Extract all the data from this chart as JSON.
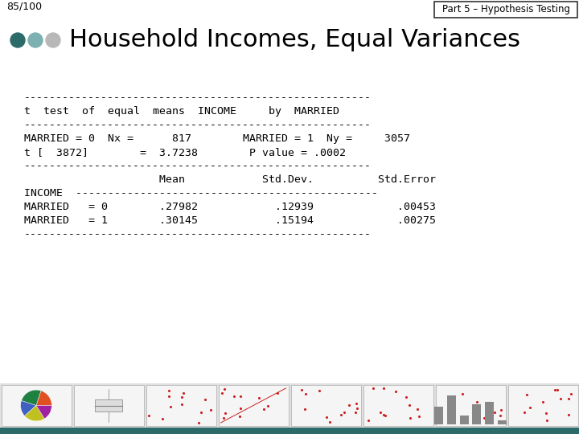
{
  "page_number": "85/100",
  "tab_label": "Part 5 – Hypothesis Testing",
  "title": "Household Incomes, Equal Variances",
  "dot_colors": [
    "#2d6b6b",
    "#7db0b0",
    "#b8b8b8"
  ],
  "bg_color": "#ffffff",
  "tab_bg": "#ffffff",
  "tab_border": "#333333",
  "bottom_bar_color": "#2d6b6b",
  "mono_lines": [
    "------------------------------------------------------",
    "t  test  of  equal  means  INCOME     by  MARRIED",
    "------------------------------------------------------",
    "MARRIED = 0  Nx =      817        MARRIED = 1  Ny =     3057",
    "t [  3872]        =  3.7238        P value = .0002",
    "------------------------------------------------------",
    "                     Mean            Std.Dev.          Std.Error",
    "INCOME  -----------------------------------------------",
    "MARRIED   = 0        .27982            .12939             .00453",
    "MARRIED   = 1        .30145            .15194             .00275",
    "------------------------------------------------------"
  ],
  "mono_fontsize": 9.5,
  "title_fontsize": 22,
  "page_fontsize": 9,
  "tab_fontsize": 8.5
}
